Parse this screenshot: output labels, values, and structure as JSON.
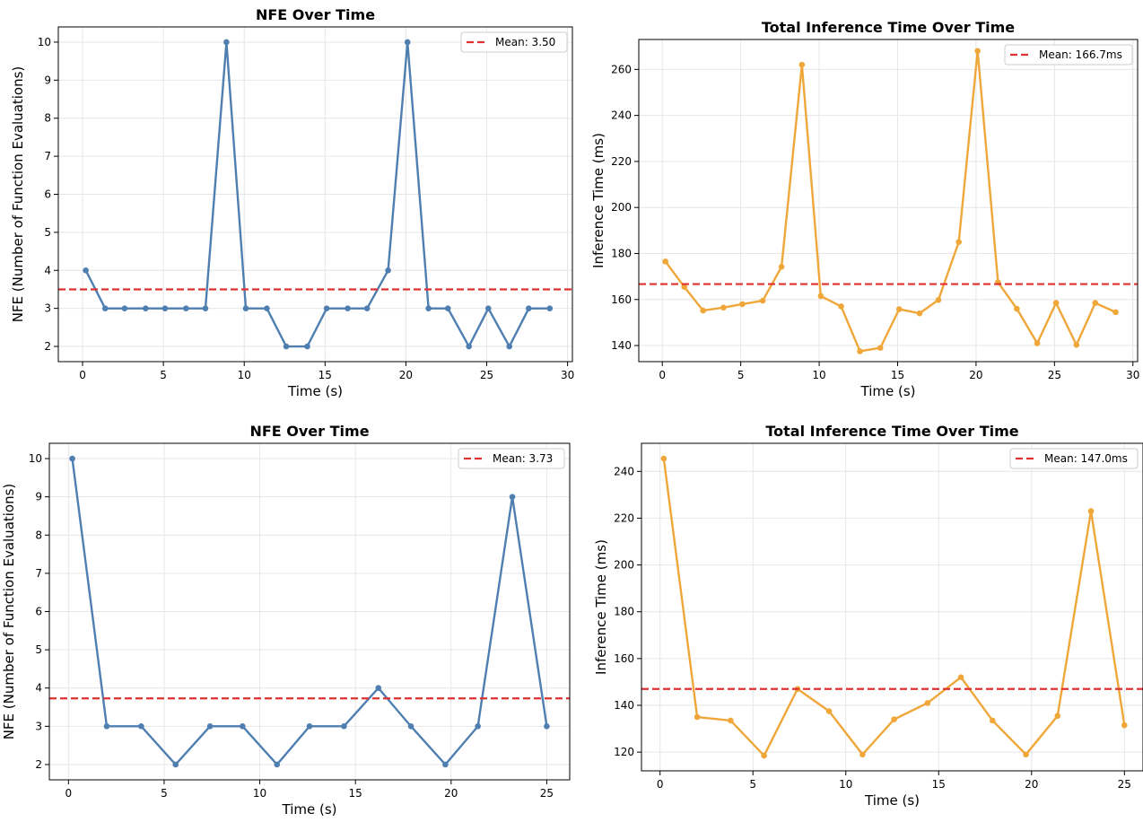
{
  "chart_data": [
    {
      "type": "line",
      "title": "NFE Over Time",
      "xlabel": "Time (s)",
      "ylabel": "NFE (Number of Function Evaluations)",
      "xlim": [
        -1.5,
        30.3
      ],
      "ylim": [
        1.6,
        10.4
      ],
      "xticks": [
        0,
        5,
        10,
        15,
        20,
        25,
        30
      ],
      "yticks": [
        2,
        3,
        4,
        5,
        6,
        7,
        8,
        9,
        10
      ],
      "grid": true,
      "legend_position": "top-right",
      "line_color": "#4f7fb0",
      "series": [
        {
          "x": [
            0.2,
            1.4,
            2.6,
            3.9,
            5.1,
            6.4,
            7.6,
            8.9,
            10.1,
            11.4,
            12.6,
            13.9,
            15.1,
            16.4,
            17.6,
            18.9,
            20.1,
            21.4,
            22.6,
            23.9,
            25.1,
            26.4,
            27.6,
            28.9
          ],
          "values": [
            4,
            3,
            3,
            3,
            3,
            3,
            3,
            10,
            3,
            3,
            2,
            2,
            3,
            3,
            3,
            4,
            10,
            3,
            3,
            2,
            3,
            2,
            3,
            3
          ]
        }
      ],
      "mean_line": {
        "value": 3.5,
        "label": "Mean: 3.50",
        "color": "#e03030"
      }
    },
    {
      "type": "line",
      "title": "Total Inference Time Over Time",
      "xlabel": "Time (s)",
      "ylabel": "Inference Time (ms)",
      "xlim": [
        -1.5,
        30.3
      ],
      "ylim": [
        133,
        273
      ],
      "xticks": [
        0,
        5,
        10,
        15,
        20,
        25,
        30
      ],
      "yticks": [
        140,
        160,
        180,
        200,
        220,
        240,
        260
      ],
      "grid": true,
      "legend_position": "top-right",
      "line_color": "#f0a73a",
      "series": [
        {
          "x": [
            0.2,
            1.4,
            2.6,
            3.9,
            5.1,
            6.4,
            7.6,
            8.9,
            10.1,
            11.4,
            12.6,
            13.9,
            15.1,
            16.4,
            17.6,
            18.9,
            20.1,
            21.4,
            22.6,
            23.9,
            25.1,
            26.4,
            27.6,
            28.9
          ],
          "values": [
            176.5,
            165.5,
            155.2,
            156.5,
            158.0,
            159.5,
            174.2,
            262.0,
            161.5,
            157.0,
            137.5,
            139.0,
            155.8,
            154.0,
            159.8,
            185.0,
            268.0,
            167.5,
            156.0,
            141.0,
            158.5,
            140.3,
            158.5,
            154.5
          ]
        }
      ],
      "mean_line": {
        "value": 166.7,
        "label": "Mean: 166.7ms",
        "color": "#e03030"
      }
    },
    {
      "type": "line",
      "title": "NFE Over Time",
      "xlabel": "Time (s)",
      "ylabel": "NFE (Number of Function Evaluations)",
      "xlim": [
        -1.0,
        26.2
      ],
      "ylim": [
        1.6,
        10.4
      ],
      "xticks": [
        0,
        5,
        10,
        15,
        20,
        25
      ],
      "yticks": [
        2,
        3,
        4,
        5,
        6,
        7,
        8,
        9,
        10
      ],
      "grid": true,
      "legend_position": "top-right",
      "line_color": "#4f7fb0",
      "series": [
        {
          "x": [
            0.2,
            2.0,
            3.8,
            5.6,
            7.4,
            9.1,
            10.9,
            12.6,
            14.4,
            16.2,
            17.9,
            19.7,
            21.4,
            23.2,
            25.0
          ],
          "values": [
            10,
            3,
            3,
            2,
            3,
            3,
            2,
            3,
            3,
            4,
            3,
            2,
            3,
            9,
            3
          ]
        }
      ],
      "mean_line": {
        "value": 3.73,
        "label": "Mean: 3.73",
        "color": "#e03030"
      }
    },
    {
      "type": "line",
      "title": "Total Inference Time Over Time",
      "xlabel": "Time (s)",
      "ylabel": "Inference Time (ms)",
      "xlim": [
        -1.0,
        26.0
      ],
      "ylim": [
        112,
        252
      ],
      "xticks": [
        0,
        5,
        10,
        15,
        20,
        25
      ],
      "yticks": [
        120,
        140,
        160,
        180,
        200,
        220,
        240
      ],
      "grid": true,
      "legend_position": "top-right",
      "line_color": "#f0a73a",
      "series": [
        {
          "x": [
            0.2,
            2.0,
            3.8,
            5.6,
            7.4,
            9.1,
            10.9,
            12.6,
            14.4,
            16.2,
            17.9,
            19.7,
            21.4,
            23.2,
            25.0
          ],
          "values": [
            245.5,
            135.0,
            133.5,
            118.5,
            147.0,
            137.5,
            119.0,
            134.0,
            141.0,
            152.0,
            133.5,
            119.0,
            135.5,
            223.0,
            131.5
          ]
        }
      ],
      "mean_line": {
        "value": 147.0,
        "label": "Mean: 147.0ms",
        "color": "#e03030"
      }
    }
  ]
}
